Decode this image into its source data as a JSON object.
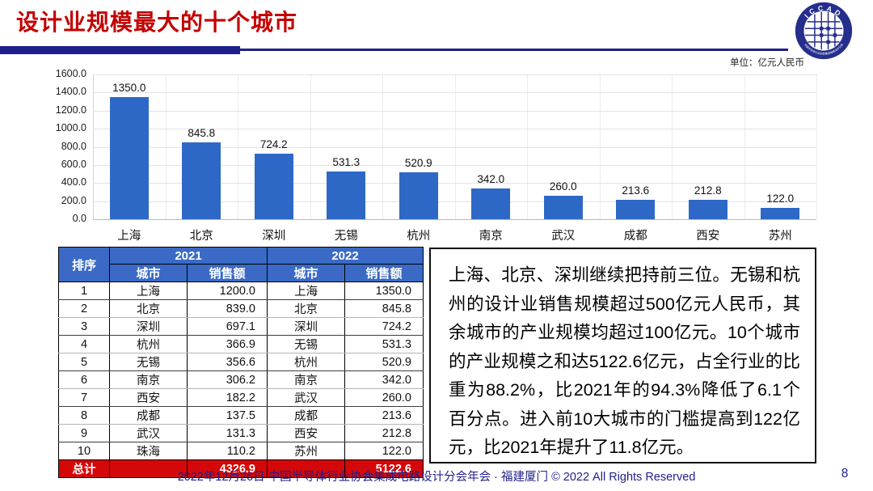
{
  "slide": {
    "title": "设计业规模最大的十个城市",
    "unit_label": "单位：亿元人民币",
    "page_number": "8",
    "footer_text": "2022年12月26日 中国半导体行业协会集成电路设计分会年会 · 福建厦门 © 2022 All Rights Reserved"
  },
  "logo": {
    "acronym": "ICCAD",
    "ring_text": "中国半导体行业协会集成电路设计分会"
  },
  "chart_data": {
    "type": "bar",
    "title": "",
    "xlabel": "",
    "ylabel": "",
    "unit": "亿元人民币",
    "categories": [
      "上海",
      "北京",
      "深圳",
      "无锡",
      "杭州",
      "南京",
      "武汉",
      "成都",
      "西安",
      "苏州"
    ],
    "values": [
      1350.0,
      845.8,
      724.2,
      531.3,
      520.9,
      342.0,
      260.0,
      213.6,
      212.8,
      122.0
    ],
    "data_labels": [
      "1350.0",
      "845.8",
      "724.2",
      "531.3",
      "520.9",
      "342.0",
      "260.0",
      "213.6",
      "212.8",
      "122.0"
    ],
    "ylim": [
      0,
      1600
    ],
    "ytick_interval": 200,
    "ytick_labels": [
      "0.0",
      "200.0",
      "400.0",
      "600.0",
      "800.0",
      "1000.0",
      "1200.0",
      "1400.0",
      "1600.0"
    ],
    "grid": true,
    "legend_position": "none"
  },
  "table": {
    "headers": {
      "rank": "排序",
      "group_2021": "2021",
      "group_2022": "2022",
      "city": "城市",
      "sales": "销售额"
    },
    "rows": [
      [
        "1",
        "上海",
        "1200.0",
        "上海",
        "1350.0"
      ],
      [
        "2",
        "北京",
        "839.0",
        "北京",
        "845.8"
      ],
      [
        "3",
        "深圳",
        "697.1",
        "深圳",
        "724.2"
      ],
      [
        "4",
        "杭州",
        "366.9",
        "无锡",
        "531.3"
      ],
      [
        "5",
        "无锡",
        "356.6",
        "杭州",
        "520.9"
      ],
      [
        "6",
        "南京",
        "306.2",
        "南京",
        "342.0"
      ],
      [
        "7",
        "西安",
        "182.2",
        "武汉",
        "260.0"
      ],
      [
        "8",
        "成都",
        "137.5",
        "成都",
        "213.6"
      ],
      [
        "9",
        "武汉",
        "131.3",
        "西安",
        "212.8"
      ],
      [
        "10",
        "珠海",
        "110.2",
        "苏州",
        "122.0"
      ]
    ],
    "total_row": {
      "label": "总计",
      "total_2021": "4326.9",
      "total_2022": "5122.6"
    }
  },
  "summary_text": "上海、北京、深圳继续把持前三位。无锡和杭州的设计业销售规模超过500亿元人民币，其余城市的产业规模均超过100亿元。10个城市的产业规模之和达5122.6亿元，占全行业的比重为88.2%，比2021年的94.3%降低了6.1个百分点。进入前10大城市的门槛提高到122亿元，比2021年提升了11.8亿元。",
  "colors": {
    "accent_red": "#C40000",
    "navy": "#1F1F8C",
    "bar_blue": "#2E68C6",
    "header_blue": "#3A6AC5",
    "total_red": "#D40808",
    "grid_gray": "#e3e3e3"
  }
}
